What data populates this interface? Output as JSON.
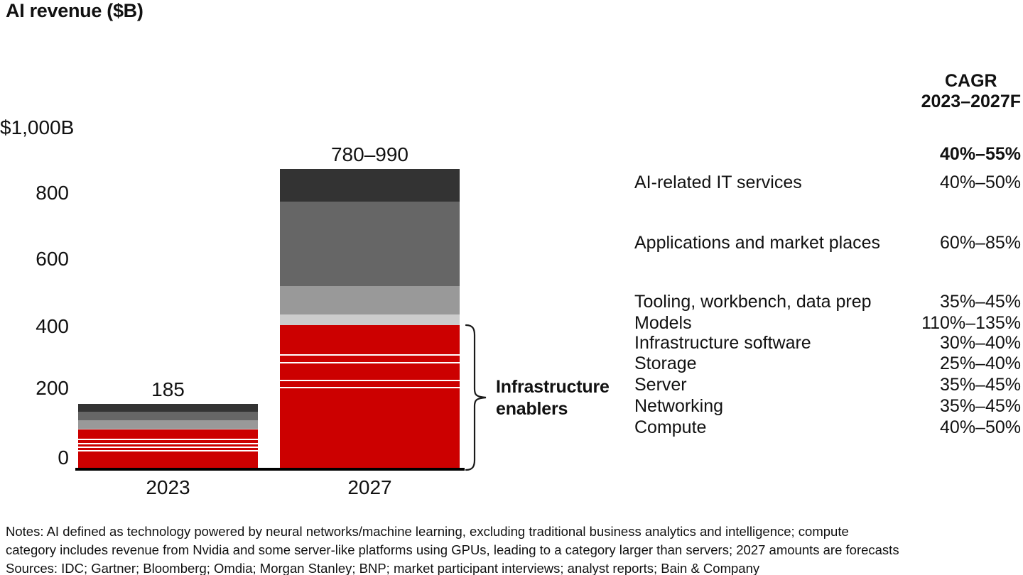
{
  "title": "AI revenue ($B)",
  "chart_data": {
    "type": "stacked-bar",
    "title": "AI revenue ($B)",
    "unit": "$B",
    "categories": [
      "2023",
      "2027"
    ],
    "bar_total_labels": [
      "185",
      "780–990"
    ],
    "y_axis": {
      "top_label": "$1,000B",
      "ticks": [
        "0",
        "200",
        "400",
        "600",
        "800"
      ],
      "tick_values": [
        0,
        200,
        400,
        600,
        800
      ],
      "max": 1000,
      "gridlines": false
    },
    "values_note": "segment values estimated from bar heights; 2027 bar drawn near midpoint of 780–990 range",
    "series": [
      {
        "name": "AI-related IT services",
        "color": "#333333",
        "values": [
          22,
          95
        ],
        "cagr": "40%–50%"
      },
      {
        "name": "Applications and market places",
        "color": "#666666",
        "values": [
          25,
          245
        ],
        "cagr": "60%–85%"
      },
      {
        "name": "Tooling, workbench, data prep",
        "color": "#999999",
        "values": [
          25,
          82
        ],
        "cagr": "35%–45%"
      },
      {
        "name": "Models",
        "color": "#cccccc",
        "values": [
          3,
          30
        ],
        "cagr": "110%–135%"
      },
      {
        "name": "Infrastructure software",
        "color": "#cc0000",
        "values": [
          26,
          85
        ],
        "cagr": "30%–40%",
        "group": "Infrastructure enablers"
      },
      {
        "name": "Storage",
        "color": "#cc0000",
        "values": [
          12,
          22
        ],
        "cagr": "25%–40%",
        "group": "Infrastructure enablers"
      },
      {
        "name": "Server",
        "color": "#cc0000",
        "values": [
          10,
          52
        ],
        "cagr": "35%–45%",
        "group": "Infrastructure enablers"
      },
      {
        "name": "Networking",
        "color": "#cc0000",
        "values": [
          10,
          20
        ],
        "cagr": "35%–45%",
        "group": "Infrastructure enablers"
      },
      {
        "name": "Compute",
        "color": "#cc0000",
        "values": [
          52,
          235
        ],
        "cagr": "40%–50%",
        "group": "Infrastructure enablers"
      }
    ],
    "annotation": {
      "brace_label": "Infrastructure enablers"
    },
    "legend_position": "right-table"
  },
  "cagr_table": {
    "header_line1": "CAGR",
    "header_line2": "2023–2027F",
    "overall": "40%–55%"
  },
  "colors": {
    "accent_red": "#cc0000",
    "dark_gray": "#333333",
    "mid_gray": "#666666",
    "light_gray": "#999999",
    "pale_gray": "#cccccc",
    "axis": "#000000"
  },
  "notes": [
    "Notes: AI defined as technology powered by neural networks/machine learning, excluding traditional business analytics and intelligence; compute",
    "category includes revenue from Nvidia and some server-like platforms using GPUs, leading to a category larger than servers; 2027 amounts are forecasts",
    "Sources: IDC; Gartner; Bloomberg; Omdia; Morgan Stanley; BNP; market participant interviews; analyst reports; Bain & Company"
  ]
}
